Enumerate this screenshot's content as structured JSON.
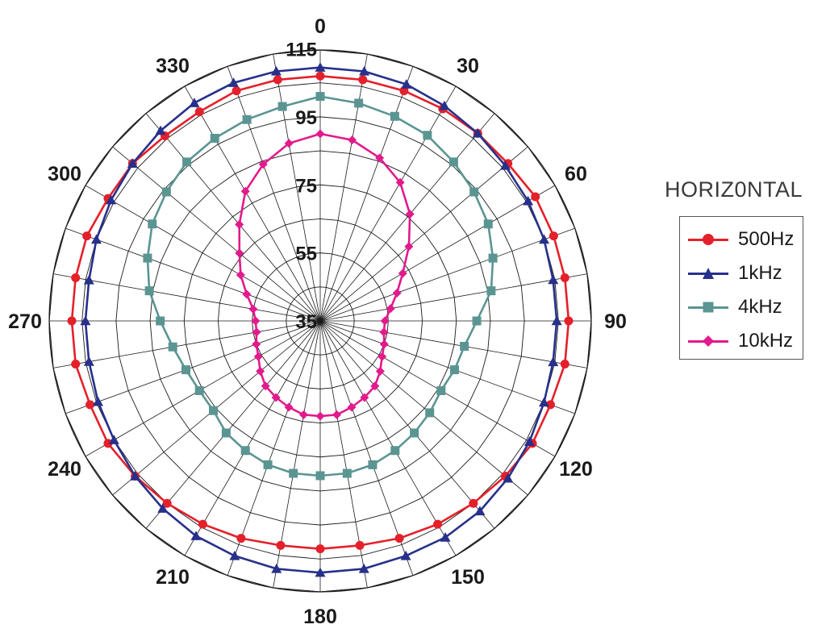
{
  "chart_data": {
    "type": "polar-line",
    "title": "HORIZ0NTAL",
    "angle_ticks": [
      "0",
      "30",
      "60",
      "90",
      "120",
      "150",
      "180",
      "210",
      "240",
      "270",
      "300",
      "330"
    ],
    "angle_tick_values": [
      0,
      30,
      60,
      90,
      120,
      150,
      180,
      210,
      240,
      270,
      300,
      330
    ],
    "radial_ticks": [
      "35",
      "55",
      "75",
      "95",
      "115"
    ],
    "radial_tick_values": [
      35,
      55,
      75,
      95,
      115
    ],
    "radial_range": [
      35,
      115
    ],
    "angle_step": 10,
    "legend_position": "right",
    "angles": [
      0,
      10,
      20,
      30,
      40,
      50,
      60,
      70,
      80,
      90,
      100,
      110,
      120,
      130,
      140,
      150,
      160,
      170,
      180,
      190,
      200,
      210,
      220,
      230,
      240,
      250,
      260,
      270,
      280,
      290,
      300,
      310,
      320,
      330,
      340,
      350
    ],
    "series": [
      {
        "name": "500Hz",
        "color": "#e4202a",
        "marker": "circle",
        "values": [
          107,
          107,
          107,
          107,
          107,
          107,
          108,
          108,
          108,
          108,
          108,
          107,
          107,
          106,
          105,
          104,
          103,
          102,
          102,
          102,
          103,
          104,
          105,
          106,
          107,
          107,
          108,
          108,
          108,
          108,
          107,
          107,
          106,
          106,
          107,
          107
        ]
      },
      {
        "name": "1kHz",
        "color": "#27308a",
        "marker": "triangle",
        "values": [
          109.5,
          109.5,
          109,
          108,
          107,
          106,
          105.5,
          105,
          104.5,
          104.5,
          104.5,
          105,
          106,
          107,
          108,
          108.5,
          108.5,
          109,
          109,
          109,
          108.5,
          108,
          107,
          106,
          105,
          104.5,
          104,
          104,
          104,
          105,
          106,
          107,
          108,
          109,
          109.5,
          109.5
        ]
      },
      {
        "name": "4kHz",
        "color": "#5b9592",
        "marker": "square",
        "values": [
          101,
          100,
          99,
          98,
          96,
          94,
          92,
          89,
          86,
          81,
          78,
          77,
          76,
          77,
          78,
          79,
          80,
          80.5,
          80.5,
          80.5,
          80,
          79,
          78,
          76,
          76,
          77,
          79,
          82,
          86,
          89,
          92,
          94,
          96,
          97,
          98,
          99
        ]
      },
      {
        "name": "10kHz",
        "color": "#e21a8c",
        "marker": "diamond",
        "values": [
          90,
          89,
          86,
          82,
          76,
          69,
          63,
          59,
          56,
          54,
          54,
          55,
          56,
          58,
          60,
          61,
          62,
          63,
          63,
          63,
          62,
          61,
          60,
          58,
          56,
          55,
          54,
          54,
          55,
          58,
          62,
          66,
          72,
          79,
          84,
          88
        ]
      }
    ]
  }
}
